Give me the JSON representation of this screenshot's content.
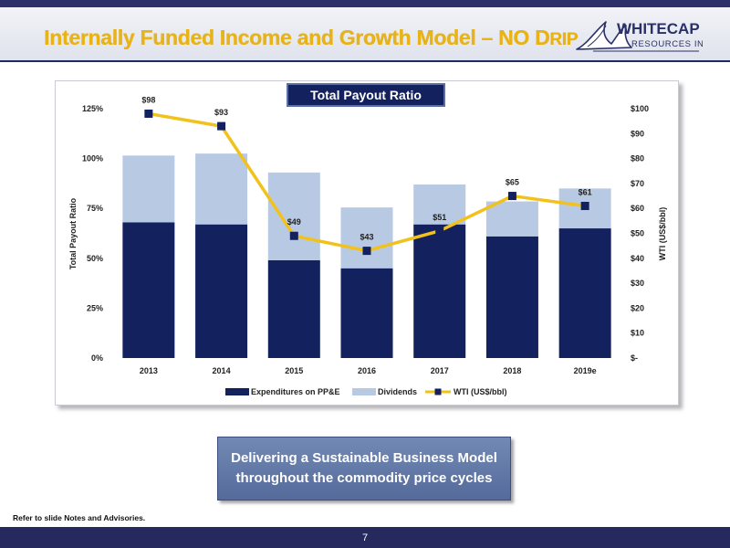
{
  "header": {
    "title": "Internally Funded Income and Growth Model – NO DRIP",
    "logo_text_main": "WHITECAP",
    "logo_text_sub": "RESOURCES INC"
  },
  "colors": {
    "navy": "#13225e",
    "light_blue": "#b8cae3",
    "gold": "#f1c21c",
    "title_gold": "#e8b318",
    "footer_navy": "#26295e"
  },
  "chart_data": {
    "type": "bar",
    "title": "Total Payout Ratio",
    "categories": [
      "2013",
      "2014",
      "2015",
      "2016",
      "2017",
      "2018",
      "2019e"
    ],
    "series": [
      {
        "name": "Expenditures on PP&E",
        "type": "bar",
        "stack": "payout",
        "axis": "left",
        "color": "#13225e",
        "values": [
          68,
          67,
          49,
          45,
          67,
          61,
          65
        ]
      },
      {
        "name": "Dividends",
        "type": "bar",
        "stack": "payout",
        "axis": "left",
        "color": "#b8cae3",
        "values": [
          33.5,
          35.5,
          44,
          30.5,
          20,
          17.5,
          20
        ]
      },
      {
        "name": "WTI (US$/bbl)",
        "type": "line",
        "axis": "right",
        "color": "#f1c21c",
        "marker_color": "#13225e",
        "values": [
          98,
          93,
          49,
          43,
          51,
          65,
          61
        ],
        "labels": [
          "$98",
          "$93",
          "$49",
          "$43",
          "$51",
          "$65",
          "$61"
        ]
      }
    ],
    "ylabel": "Total Payout Ratio",
    "ylabel_right": "WTI (US$/bbl)",
    "ylim": [
      0,
      125
    ],
    "ylim_right": [
      0,
      100
    ],
    "yticks": [
      "0%",
      "25%",
      "50%",
      "75%",
      "100%",
      "125%"
    ],
    "yticks_right": [
      "$-",
      "$10",
      "$20",
      "$30",
      "$40",
      "$50",
      "$60",
      "$70",
      "$80",
      "$90",
      "$100"
    ],
    "legend": [
      "Expenditures on PP&E",
      "Dividends",
      "WTI (US$/bbl)"
    ],
    "legend_position": "bottom",
    "grid": false
  },
  "message": {
    "line1": "Delivering a Sustainable Business Model",
    "line2": "throughout the commodity price cycles"
  },
  "footer": {
    "notes": "Refer to slide Notes and Advisories.",
    "page_number": "7"
  }
}
